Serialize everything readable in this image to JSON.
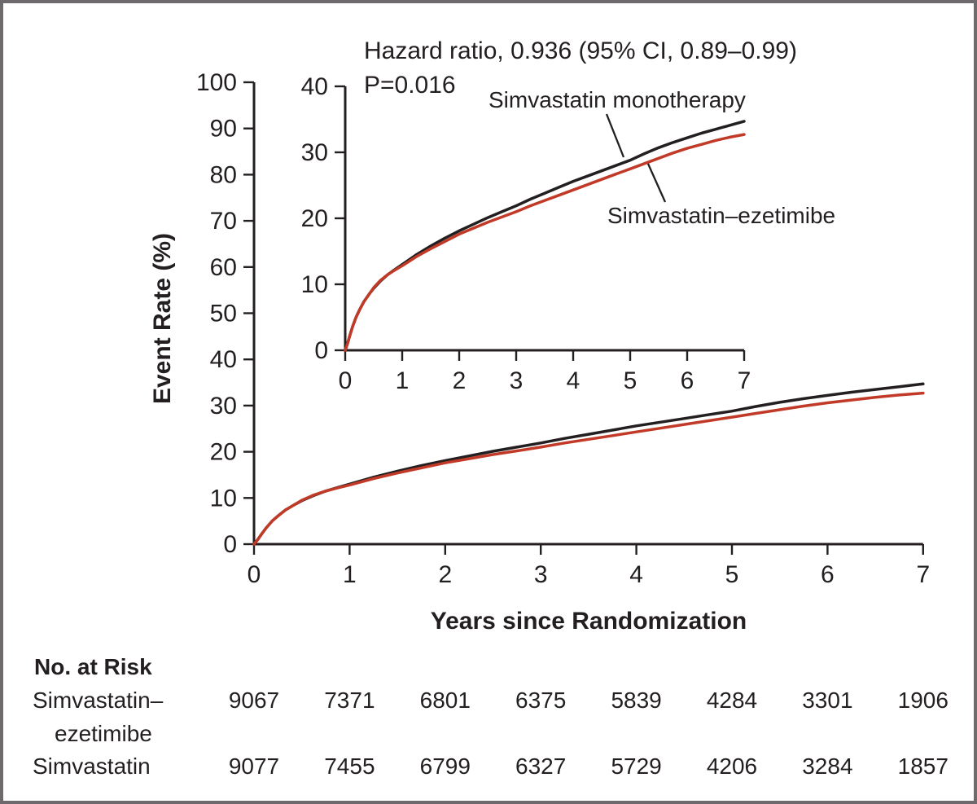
{
  "annotation": {
    "line1": "Hazard ratio, 0.936 (95% CI, 0.89–0.99)",
    "line2": "P=0.016"
  },
  "series_labels": {
    "mono": "Simvastatin monotherapy",
    "ez": "Simvastatin–ezetimibe"
  },
  "colors": {
    "ink": "#231f20",
    "simvastatin_monotherapy": "#231f20",
    "simvastatin_ezetimibe": "#c13a27",
    "frame": "#6d696d"
  },
  "chart_data": {
    "type": "line",
    "title": "Hazard ratio, 0.936 (95% CI, 0.89–0.99), P=0.016",
    "xlabel": "Years since Randomization",
    "ylabel": "Event Rate (%)",
    "xlim": [
      0,
      7
    ],
    "main_ylim": [
      0,
      100
    ],
    "inset_ylim": [
      0,
      40
    ],
    "xticks": [
      0,
      1,
      2,
      3,
      4,
      5,
      6,
      7
    ],
    "main_yticks": [
      0,
      10,
      20,
      30,
      40,
      50,
      60,
      70,
      80,
      90,
      100
    ],
    "inset_yticks": [
      0,
      10,
      20,
      30,
      40
    ],
    "grid": false,
    "legend_position": "inset-annotations",
    "series": [
      {
        "name": "Simvastatin monotherapy",
        "color": "#231f20",
        "points": [
          [
            0,
            0
          ],
          [
            0.04,
            1.0
          ],
          [
            0.08,
            2.2
          ],
          [
            0.13,
            3.6
          ],
          [
            0.19,
            5.0
          ],
          [
            0.25,
            6.1
          ],
          [
            0.33,
            7.4
          ],
          [
            0.42,
            8.5
          ],
          [
            0.5,
            9.4
          ],
          [
            0.62,
            10.5
          ],
          [
            0.75,
            11.5
          ],
          [
            0.88,
            12.3
          ],
          [
            1,
            13.0
          ],
          [
            1.25,
            14.5
          ],
          [
            1.5,
            15.8
          ],
          [
            1.75,
            17.0
          ],
          [
            2,
            18.1
          ],
          [
            2.25,
            19.1
          ],
          [
            2.5,
            20.1
          ],
          [
            2.75,
            21.0
          ],
          [
            3,
            21.9
          ],
          [
            3.25,
            22.9
          ],
          [
            3.5,
            23.8
          ],
          [
            3.75,
            24.7
          ],
          [
            4,
            25.6
          ],
          [
            4.25,
            26.4
          ],
          [
            4.5,
            27.2
          ],
          [
            4.75,
            28.0
          ],
          [
            5,
            28.8
          ],
          [
            5.25,
            29.8
          ],
          [
            5.5,
            30.7
          ],
          [
            5.75,
            31.5
          ],
          [
            6,
            32.2
          ],
          [
            6.25,
            32.9
          ],
          [
            6.5,
            33.5
          ],
          [
            6.75,
            34.1
          ],
          [
            7,
            34.7
          ]
        ]
      },
      {
        "name": "Simvastatin–ezetimibe",
        "color": "#c13a27",
        "points": [
          [
            0,
            0
          ],
          [
            0.04,
            1.0
          ],
          [
            0.08,
            2.2
          ],
          [
            0.13,
            3.6
          ],
          [
            0.19,
            5.0
          ],
          [
            0.25,
            6.1
          ],
          [
            0.33,
            7.4
          ],
          [
            0.42,
            8.5
          ],
          [
            0.5,
            9.5
          ],
          [
            0.62,
            10.6
          ],
          [
            0.75,
            11.5
          ],
          [
            0.88,
            12.2
          ],
          [
            1,
            12.8
          ],
          [
            1.25,
            14.2
          ],
          [
            1.5,
            15.4
          ],
          [
            1.75,
            16.5
          ],
          [
            2,
            17.6
          ],
          [
            2.25,
            18.5
          ],
          [
            2.5,
            19.4
          ],
          [
            2.75,
            20.2
          ],
          [
            3,
            21.0
          ],
          [
            3.25,
            21.9
          ],
          [
            3.5,
            22.7
          ],
          [
            3.75,
            23.5
          ],
          [
            4,
            24.3
          ],
          [
            4.25,
            25.1
          ],
          [
            4.5,
            25.9
          ],
          [
            4.75,
            26.7
          ],
          [
            5,
            27.5
          ],
          [
            5.25,
            28.3
          ],
          [
            5.5,
            29.1
          ],
          [
            5.75,
            29.9
          ],
          [
            6,
            30.6
          ],
          [
            6.25,
            31.2
          ],
          [
            6.5,
            31.8
          ],
          [
            6.75,
            32.3
          ],
          [
            7,
            32.7
          ]
        ]
      }
    ]
  },
  "risk_table": {
    "title": "No. at Risk",
    "rows": [
      {
        "label_line1": "Simvastatin–",
        "label_line2": "ezetimibe",
        "values": [
          "9067",
          "7371",
          "6801",
          "6375",
          "5839",
          "4284",
          "3301",
          "1906"
        ]
      },
      {
        "label_line1": "Simvastatin",
        "label_line2": "",
        "values": [
          "9077",
          "7455",
          "6799",
          "6327",
          "5729",
          "4206",
          "3284",
          "1857"
        ]
      }
    ]
  }
}
